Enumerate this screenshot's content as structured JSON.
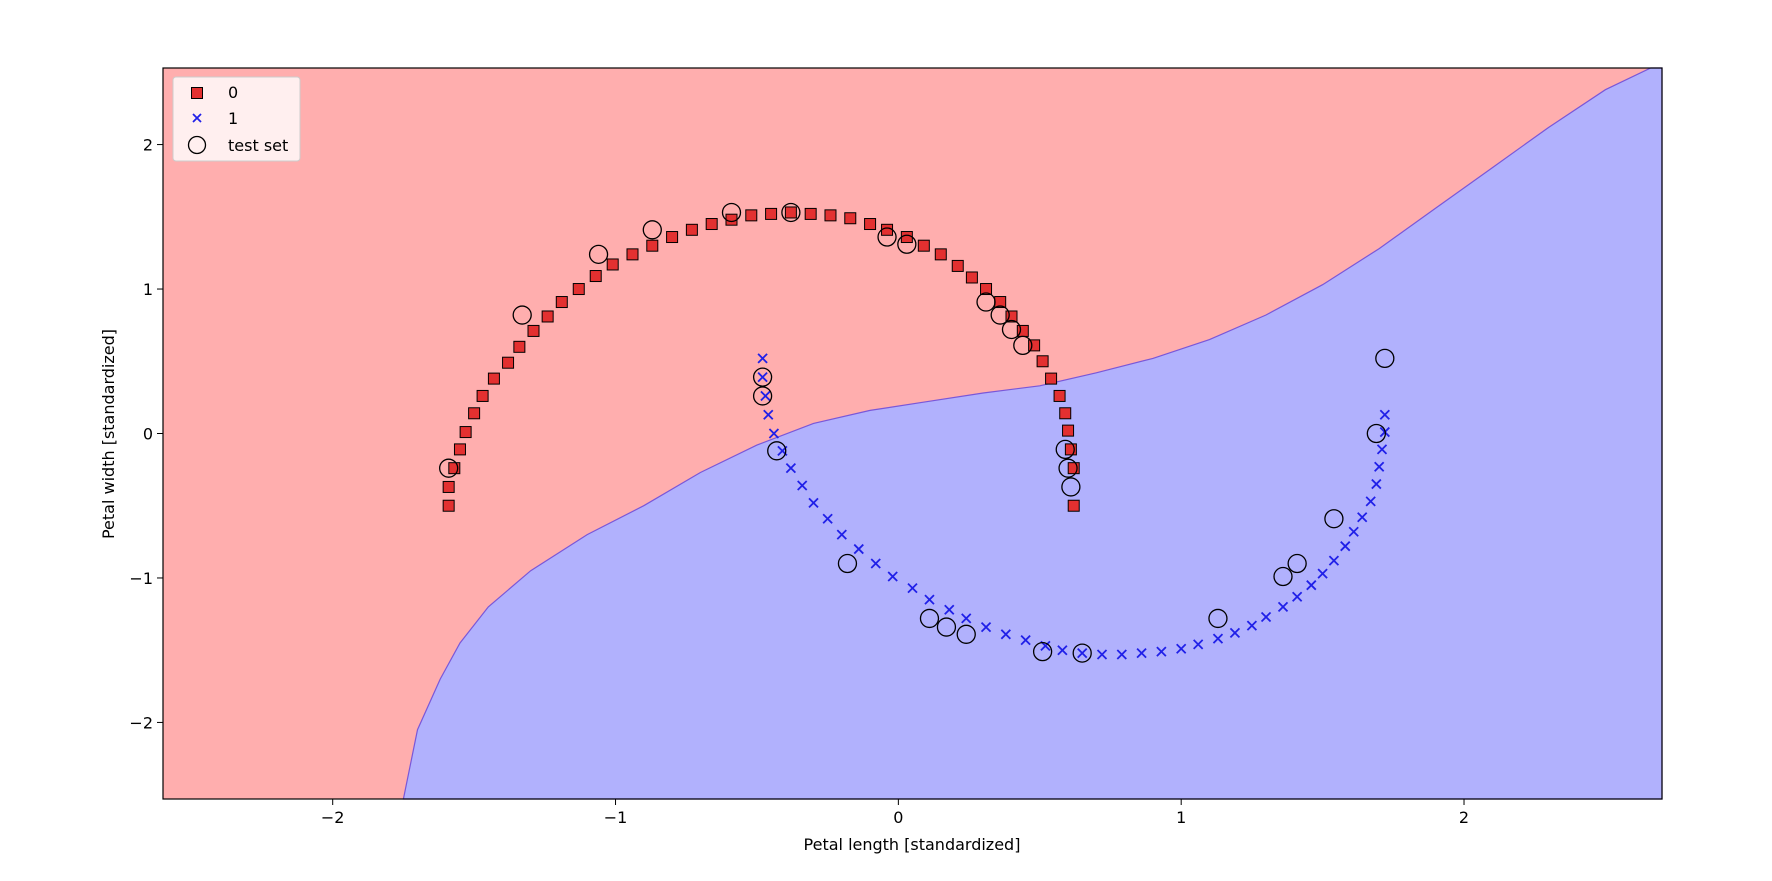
{
  "chart_data": {
    "type": "scatter",
    "title": "",
    "xlabel": "Petal length [standardized]",
    "ylabel": "Petal width [standardized]",
    "xlim": [
      -2.6,
      2.7
    ],
    "ylim": [
      -2.53,
      2.53
    ],
    "xticks": [
      -2,
      -1,
      0,
      1,
      2
    ],
    "yticks": [
      -2,
      -1,
      0,
      1,
      2
    ],
    "xtick_labels": [
      "−2",
      "−1",
      "0",
      "1",
      "2"
    ],
    "ytick_labels": [
      "−2",
      "−1",
      "0",
      "1",
      "2"
    ],
    "grid": false,
    "legend_position": "upper-left",
    "region_colors": {
      "class0": "#ffaeae",
      "class1": "#b1b1fd"
    },
    "decision_boundary": [
      [
        -1.75,
        -2.53
      ],
      [
        -1.7,
        -2.05
      ],
      [
        -1.62,
        -1.7
      ],
      [
        -1.55,
        -1.45
      ],
      [
        -1.45,
        -1.2
      ],
      [
        -1.3,
        -0.95
      ],
      [
        -1.1,
        -0.7
      ],
      [
        -0.9,
        -0.5
      ],
      [
        -0.7,
        -0.27
      ],
      [
        -0.5,
        -0.08
      ],
      [
        -0.3,
        0.07
      ],
      [
        -0.1,
        0.16
      ],
      [
        0.1,
        0.22
      ],
      [
        0.3,
        0.28
      ],
      [
        0.5,
        0.33
      ],
      [
        0.7,
        0.42
      ],
      [
        0.9,
        0.52
      ],
      [
        1.1,
        0.65
      ],
      [
        1.3,
        0.82
      ],
      [
        1.5,
        1.03
      ],
      [
        1.7,
        1.28
      ],
      [
        1.9,
        1.56
      ],
      [
        2.1,
        1.84
      ],
      [
        2.3,
        2.12
      ],
      [
        2.5,
        2.38
      ],
      [
        2.66,
        2.53
      ]
    ],
    "series": [
      {
        "name": "0",
        "marker": "square",
        "color": "#e33030",
        "x": [
          -1.59,
          -1.59,
          -1.57,
          -1.55,
          -1.53,
          -1.5,
          -1.47,
          -1.43,
          -1.38,
          -1.34,
          -1.29,
          -1.24,
          -1.19,
          -1.13,
          -1.07,
          -1.01,
          -0.94,
          -0.87,
          -0.8,
          -0.73,
          -0.66,
          -0.59,
          -0.52,
          -0.45,
          -0.38,
          -0.31,
          -0.24,
          -0.17,
          -0.1,
          -0.04,
          0.03,
          0.09,
          0.15,
          0.21,
          0.26,
          0.31,
          0.36,
          0.4,
          0.44,
          0.48,
          0.51,
          0.54,
          0.57,
          0.59,
          0.6,
          0.61,
          0.62,
          0.62
        ],
        "y": [
          -0.5,
          -0.37,
          -0.24,
          -0.11,
          0.01,
          0.14,
          0.26,
          0.38,
          0.49,
          0.6,
          0.71,
          0.81,
          0.91,
          1.0,
          1.09,
          1.17,
          1.24,
          1.3,
          1.36,
          1.41,
          1.45,
          1.48,
          1.51,
          1.52,
          1.53,
          1.52,
          1.51,
          1.49,
          1.45,
          1.41,
          1.36,
          1.3,
          1.24,
          1.16,
          1.08,
          1.0,
          0.91,
          0.81,
          0.71,
          0.61,
          0.5,
          0.38,
          0.26,
          0.14,
          0.02,
          -0.11,
          -0.24,
          -0.5
        ]
      },
      {
        "name": "1",
        "marker": "x",
        "color": "#2020e8",
        "x": [
          -0.48,
          -0.48,
          -0.47,
          -0.46,
          -0.44,
          -0.41,
          -0.38,
          -0.34,
          -0.3,
          -0.25,
          -0.2,
          -0.14,
          -0.08,
          -0.02,
          0.05,
          0.11,
          0.18,
          0.24,
          0.31,
          0.38,
          0.45,
          0.52,
          0.58,
          0.65,
          0.72,
          0.79,
          0.86,
          0.93,
          1.0,
          1.06,
          1.13,
          1.19,
          1.25,
          1.3,
          1.36,
          1.41,
          1.46,
          1.5,
          1.54,
          1.58,
          1.61,
          1.64,
          1.67,
          1.69,
          1.7,
          1.71,
          1.72,
          1.72
        ],
        "y": [
          0.52,
          0.39,
          0.26,
          0.13,
          0.0,
          -0.12,
          -0.24,
          -0.36,
          -0.48,
          -0.59,
          -0.7,
          -0.8,
          -0.9,
          -0.99,
          -1.07,
          -1.15,
          -1.22,
          -1.28,
          -1.34,
          -1.39,
          -1.43,
          -1.47,
          -1.5,
          -1.52,
          -1.53,
          -1.53,
          -1.52,
          -1.51,
          -1.49,
          -1.46,
          -1.42,
          -1.38,
          -1.33,
          -1.27,
          -1.2,
          -1.13,
          -1.05,
          -0.97,
          -0.88,
          -0.78,
          -0.68,
          -0.58,
          -0.47,
          -0.35,
          -0.23,
          -0.11,
          0.01,
          0.13
        ]
      }
    ],
    "test_set": {
      "name": "test set",
      "marker": "circle-open",
      "x": [
        -1.59,
        -1.33,
        -1.06,
        -0.87,
        -0.59,
        -0.38,
        -0.04,
        0.03,
        0.31,
        0.36,
        0.4,
        0.44,
        0.59,
        0.6,
        0.61,
        -0.48,
        -0.48,
        -0.43,
        -0.18,
        0.11,
        0.17,
        0.24,
        0.51,
        0.65,
        1.13,
        1.36,
        1.41,
        1.54,
        1.69,
        1.72
      ],
      "y": [
        -0.24,
        0.82,
        1.24,
        1.41,
        1.53,
        1.53,
        1.36,
        1.31,
        0.91,
        0.82,
        0.72,
        0.61,
        -0.11,
        -0.24,
        -0.37,
        0.39,
        0.26,
        -0.12,
        -0.9,
        -1.28,
        -1.34,
        -1.39,
        -1.51,
        -1.52,
        -1.28,
        -0.99,
        -0.9,
        -0.59,
        0.0,
        0.52
      ]
    }
  }
}
